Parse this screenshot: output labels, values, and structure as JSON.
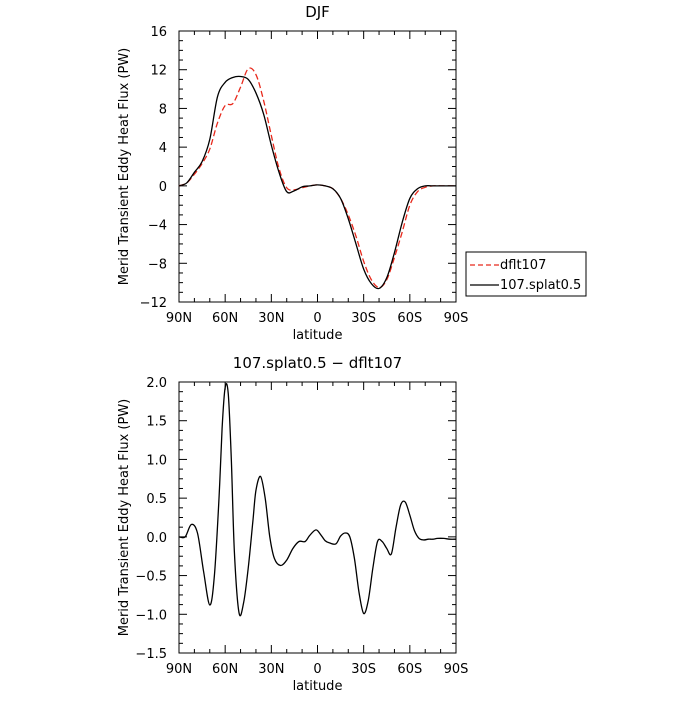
{
  "chart_data": [
    {
      "type": "line",
      "title": "DJF",
      "xlabel": "latitude",
      "ylabel": "Merid Transient Eddy Heat Flux (PW)",
      "xlim": [
        90,
        -90
      ],
      "ylim": [
        -12,
        16
      ],
      "x_ticks": [
        90,
        60,
        30,
        0,
        -30,
        -60,
        -90
      ],
      "x_tick_labels": [
        "90N",
        "60N",
        "30N",
        "0",
        "30S",
        "60S",
        "90S"
      ],
      "y_ticks": [
        -12,
        -8,
        -4,
        0,
        4,
        8,
        12,
        16
      ],
      "y_tick_labels": [
        "−12",
        "−8",
        "−4",
        "0",
        "4",
        "8",
        "12",
        "16"
      ],
      "legend_position": "outside-right",
      "series": [
        {
          "name": "dflt107",
          "color": "#e8291c",
          "dash": "dashed",
          "x": [
            90,
            85,
            80,
            75,
            70,
            65,
            60,
            55,
            50,
            45,
            40,
            35,
            30,
            25,
            20,
            15,
            10,
            5,
            0,
            -5,
            -10,
            -15,
            -20,
            -25,
            -30,
            -35,
            -40,
            -45,
            -50,
            -55,
            -60,
            -65,
            -70,
            -75,
            -80,
            -85,
            -90
          ],
          "values": [
            0,
            0.3,
            1.2,
            2.3,
            3.8,
            6.5,
            8.3,
            8.5,
            10.2,
            12.1,
            11.5,
            8.8,
            5.2,
            1.8,
            -0.2,
            -0.4,
            -0.2,
            0,
            0.1,
            0,
            -0.3,
            -1.3,
            -3.0,
            -5.2,
            -7.8,
            -9.7,
            -10.5,
            -9.7,
            -7.4,
            -4.8,
            -2.0,
            -0.6,
            -0.15,
            0,
            0,
            0,
            0
          ]
        },
        {
          "name": "107.splat0.5",
          "color": "#000000",
          "dash": "solid",
          "x": [
            90,
            85,
            80,
            75,
            70,
            65,
            60,
            55,
            50,
            45,
            40,
            35,
            30,
            25,
            20,
            15,
            10,
            5,
            0,
            -5,
            -10,
            -15,
            -20,
            -25,
            -30,
            -35,
            -40,
            -45,
            -50,
            -55,
            -60,
            -65,
            -70,
            -75,
            -80,
            -85,
            -90
          ],
          "values": [
            0,
            0.3,
            1.4,
            2.5,
            4.8,
            9.2,
            10.7,
            11.2,
            11.3,
            11.0,
            9.6,
            7.4,
            4.2,
            1.4,
            -0.6,
            -0.5,
            -0.1,
            0,
            0.1,
            0,
            -0.3,
            -1.3,
            -3.4,
            -6.0,
            -8.6,
            -10.1,
            -10.6,
            -9.5,
            -6.9,
            -3.8,
            -1.3,
            -0.3,
            0,
            0,
            0,
            0,
            0
          ]
        }
      ]
    },
    {
      "type": "line",
      "title": "107.splat0.5 − dflt107",
      "xlabel": "latitude",
      "ylabel": "Merid Transient Eddy Heat Flux (PW)",
      "xlim": [
        90,
        -90
      ],
      "ylim": [
        -1.5,
        2.0
      ],
      "x_ticks": [
        90,
        60,
        30,
        0,
        -30,
        -60,
        -90
      ],
      "x_tick_labels": [
        "90N",
        "60N",
        "30N",
        "0",
        "30S",
        "60S",
        "90S"
      ],
      "y_ticks": [
        -1.5,
        -1.0,
        -0.5,
        0.0,
        0.5,
        1.0,
        1.5,
        2.0
      ],
      "y_tick_labels": [
        "−1.5",
        "−1.0",
        "−0.5",
        "0.0",
        "0.5",
        "1.0",
        "1.5",
        "2.0"
      ],
      "series": [
        {
          "color": "#000000",
          "dash": "solid",
          "x": [
            90,
            86,
            82,
            78,
            74,
            70,
            67,
            64,
            62,
            60,
            58,
            56,
            54,
            51,
            48,
            45,
            42,
            40,
            37,
            34,
            31,
            28,
            24,
            20,
            16,
            12,
            8,
            5,
            1,
            -2,
            -5,
            -8,
            -12,
            -15,
            -18,
            -21,
            -24,
            -27,
            -30,
            -33,
            -36,
            -39,
            -42,
            -45,
            -48,
            -51,
            -54,
            -57,
            -60,
            -63,
            -66,
            -69,
            -72,
            -75,
            -78,
            -82,
            -86,
            -90
          ],
          "values": [
            0,
            0,
            0.16,
            0.05,
            -0.45,
            -0.88,
            -0.5,
            0.5,
            1.4,
            1.93,
            1.85,
            1.0,
            -0.2,
            -0.98,
            -0.85,
            -0.4,
            0.2,
            0.6,
            0.78,
            0.5,
            0,
            -0.28,
            -0.37,
            -0.3,
            -0.15,
            -0.06,
            -0.06,
            0.02,
            0.09,
            0.03,
            -0.05,
            -0.08,
            -0.09,
            0.01,
            0.05,
            0,
            -0.28,
            -0.72,
            -0.99,
            -0.82,
            -0.4,
            -0.06,
            -0.06,
            -0.15,
            -0.22,
            0.12,
            0.41,
            0.45,
            0.28,
            0.08,
            -0.02,
            -0.04,
            -0.03,
            -0.03,
            -0.02,
            -0.02,
            -0.03,
            -0.03
          ]
        }
      ]
    }
  ]
}
